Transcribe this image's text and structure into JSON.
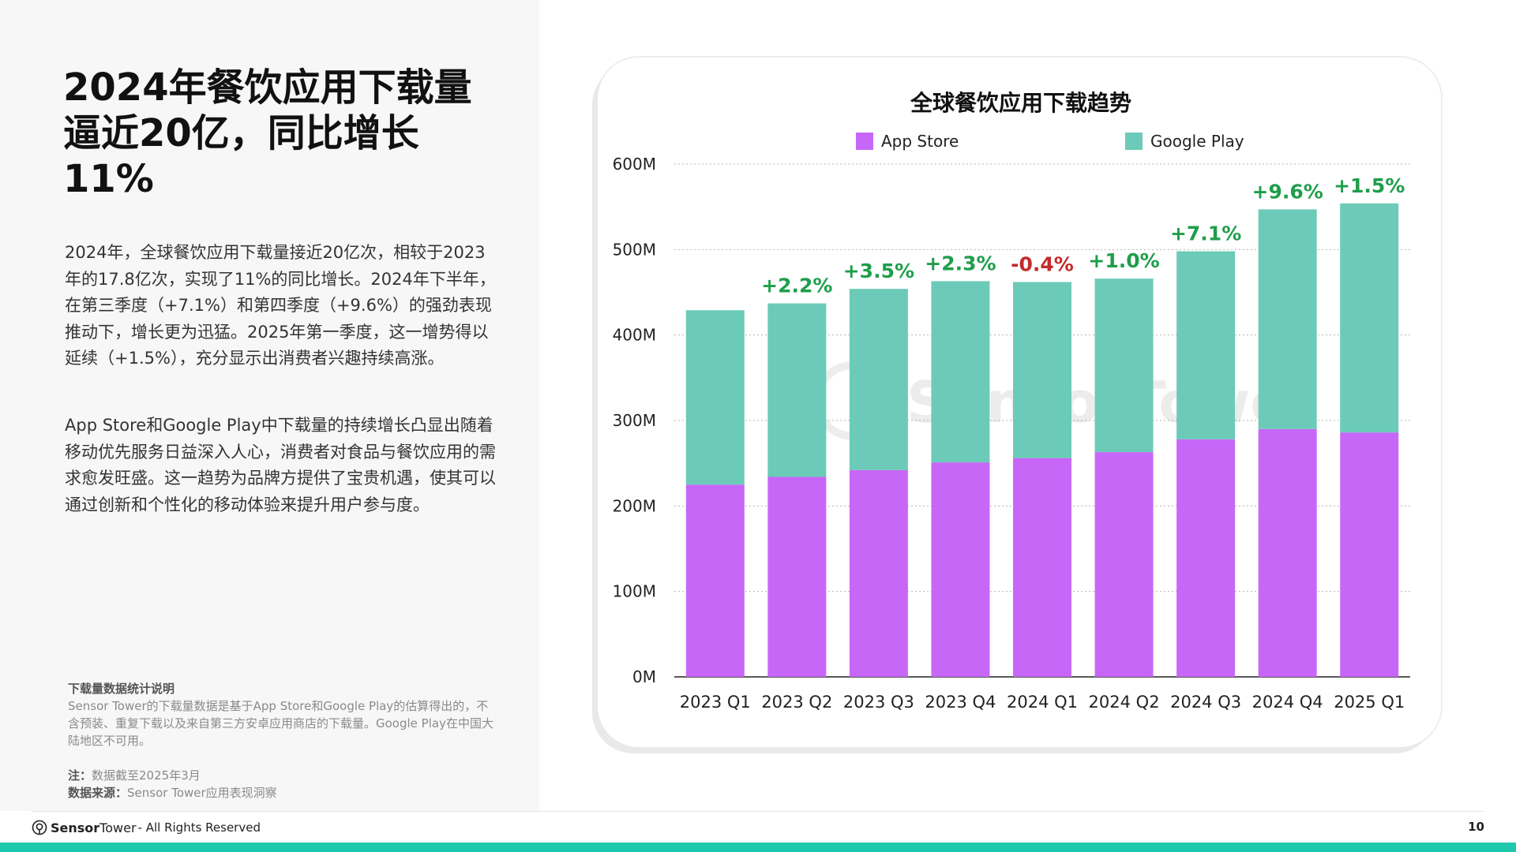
{
  "headline": "2024年餐饮应用下载量逼近20亿，同比增长11%",
  "paragraphs": [
    "2024年，全球餐饮应用下载量接近20亿次，相较于2023年的17.8亿次，实现了11%的同比增长。2024年下半年，在第三季度（+7.1%）和第四季度（+9.6%）的强劲表现推动下，增长更为迅猛。2025年第一季度，这一增势得以延续（+1.5%），充分显示出消费者兴趣持续高涨。",
    "App Store和Google Play中下载量的持续增长凸显出随着移动优先服务日益深入人心，消费者对食品与餐饮应用的需求愈发旺盛。这一趋势为品牌方提供了宝贵机遇，使其可以通过创新和个性化的移动体验来提升用户参与度。"
  ],
  "notes": {
    "title": "下载量数据统计说明",
    "body": "Sensor Tower的下载量数据是基于App Store和Google Play的估算得出的，不含预装、重复下载以及来自第三方安卓应用商店的下载量。Google Play在中国大陆地区不可用。",
    "note_label": "注：",
    "note_value": "数据截至2025年3月",
    "source_label": "数据来源：",
    "source_value": "Sensor Tower应用表现洞察"
  },
  "footer": {
    "brand_a": "Sensor",
    "brand_b": "Tower",
    "rights": "- All Rights Reserved",
    "page_number": "10"
  },
  "watermark": "SensorTower",
  "colors": {
    "app_store": "#c767f7",
    "google_play": "#6bcbb8",
    "growth_positive": "#1e9e4a",
    "growth_negative": "#c42a2a",
    "accent_bar": "#1ec8ad"
  },
  "chart_data": {
    "type": "bar",
    "stacked": true,
    "title": "全球餐饮应用下载趋势",
    "categories": [
      "2023 Q1",
      "2023 Q2",
      "2023 Q3",
      "2023 Q4",
      "2024 Q1",
      "2024 Q2",
      "2024 Q3",
      "2024 Q4",
      "2025 Q1"
    ],
    "series": [
      {
        "name": "App Store",
        "values": [
          225,
          234,
          242,
          251,
          256,
          263,
          278,
          290,
          286
        ]
      },
      {
        "name": "Google Play",
        "values": [
          204,
          203,
          212,
          212,
          206,
          203,
          220,
          257,
          268
        ]
      }
    ],
    "growth_labels": [
      "",
      "+2.2%",
      "+3.5%",
      "+2.3%",
      "-0.4%",
      "+1.0%",
      "+7.1%",
      "+9.6%",
      "+1.5%"
    ],
    "y_ticks": [
      "0M",
      "100M",
      "200M",
      "300M",
      "400M",
      "500M",
      "600M"
    ],
    "ylim": [
      0,
      600
    ],
    "grid": true,
    "legend_position": "top-center"
  }
}
